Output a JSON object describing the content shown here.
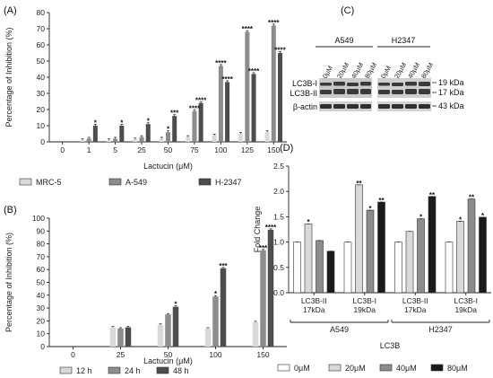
{
  "colors": {
    "light": "#d9d9d9",
    "mid": "#8c8c8c",
    "dark": "#4d4d4d",
    "black": "#1a1a1a",
    "white": "#ffffff"
  },
  "chart_data": [
    {
      "panel_label": "(A)",
      "type": "bar",
      "ylabel": "Percentage of Inhibition (%)",
      "xlabel": "Lactucin (μM)",
      "ylim": [
        0,
        80
      ],
      "yticks": [
        0,
        10,
        20,
        30,
        40,
        50,
        60,
        70,
        80
      ],
      "categories": [
        "0",
        "1",
        "5",
        "25",
        "50",
        "75",
        "100",
        "125",
        "150"
      ],
      "series": [
        {
          "name": "MRC-5",
          "color": "light",
          "values": [
            0,
            1,
            1,
            1.5,
            2,
            3,
            4,
            5,
            6
          ]
        },
        {
          "name": "A-549",
          "color": "mid",
          "values": [
            0,
            2,
            2,
            3,
            6,
            19,
            47,
            68,
            72
          ]
        },
        {
          "name": "H-2347",
          "color": "dark",
          "values": [
            0,
            10,
            10,
            11,
            16,
            24,
            37,
            42,
            55
          ]
        }
      ],
      "annotations": [
        {
          "category": 1,
          "series": 2,
          "text": "*"
        },
        {
          "category": 2,
          "series": 2,
          "text": "*"
        },
        {
          "category": 3,
          "series": 2,
          "text": "*"
        },
        {
          "category": 4,
          "series": 1,
          "text": "*"
        },
        {
          "category": 4,
          "series": 2,
          "text": "***"
        },
        {
          "category": 5,
          "series": 1,
          "text": "****"
        },
        {
          "category": 5,
          "series": 2,
          "text": "****"
        },
        {
          "category": 6,
          "series": 1,
          "text": "****"
        },
        {
          "category": 6,
          "series": 2,
          "text": "****"
        },
        {
          "category": 7,
          "series": 1,
          "text": "****"
        },
        {
          "category": 7,
          "series": 2,
          "text": "****"
        },
        {
          "category": 8,
          "series": 1,
          "text": "****"
        },
        {
          "category": 8,
          "series": 2,
          "text": "****"
        }
      ],
      "legend": "bottom"
    },
    {
      "panel_label": "(B)",
      "type": "bar",
      "ylabel": "Percentage of Inhibition (%)",
      "xlabel": "Lactucin (μM)",
      "ylim": [
        0,
        100
      ],
      "yticks": [
        0,
        10,
        20,
        30,
        40,
        50,
        60,
        70,
        80,
        90,
        100
      ],
      "categories": [
        "0",
        "25",
        "50",
        "100",
        "150"
      ],
      "series": [
        {
          "name": "12 h",
          "color": "light",
          "values": [
            0,
            15,
            17,
            14,
            19
          ]
        },
        {
          "name": "24 h",
          "color": "mid",
          "values": [
            0,
            14,
            25,
            39,
            75
          ]
        },
        {
          "name": "48 h",
          "color": "dark",
          "values": [
            0,
            15,
            31,
            61,
            91
          ]
        }
      ],
      "annotations": [
        {
          "category": 2,
          "series": 2,
          "text": "*"
        },
        {
          "category": 3,
          "series": 1,
          "text": "*"
        },
        {
          "category": 3,
          "series": 2,
          "text": "***"
        },
        {
          "category": 4,
          "series": 1,
          "text": "***"
        },
        {
          "category": 4,
          "series": 2,
          "text": "****"
        }
      ],
      "legend": "bottom"
    },
    {
      "panel_label": "(D)",
      "type": "bar",
      "ylabel": "Fold Change",
      "xlabel": "LC3B",
      "ylim": [
        0,
        2.5
      ],
      "yticks": [
        0.0,
        0.5,
        1.0,
        1.5,
        2.0,
        2.5
      ],
      "categories": [
        "LC3B-II\n17kDa",
        "LC3B-I\n19kDa",
        "LC3B-II\n17kDa",
        "LC3B-I\n19kDa"
      ],
      "groups": [
        {
          "label": "A549",
          "categories": [
            0,
            1
          ]
        },
        {
          "label": "H2347",
          "categories": [
            2,
            3
          ]
        }
      ],
      "series": [
        {
          "name": "0μM",
          "color": "white",
          "values": [
            1.0,
            1.0,
            1.0,
            1.0
          ]
        },
        {
          "name": "20μM",
          "color": "light",
          "values": [
            1.36,
            2.13,
            1.21,
            1.41
          ]
        },
        {
          "name": "40μM",
          "color": "mid",
          "values": [
            1.03,
            1.63,
            1.46,
            1.85
          ]
        },
        {
          "name": "80μM",
          "color": "black",
          "values": [
            0.82,
            1.79,
            1.9,
            1.49
          ]
        }
      ],
      "annotations": [
        {
          "category": 0,
          "series": 1,
          "text": "*"
        },
        {
          "category": 1,
          "series": 1,
          "text": "**"
        },
        {
          "category": 1,
          "series": 2,
          "text": "*"
        },
        {
          "category": 1,
          "series": 3,
          "text": "**"
        },
        {
          "category": 2,
          "series": 2,
          "text": "*"
        },
        {
          "category": 2,
          "series": 3,
          "text": "**"
        },
        {
          "category": 3,
          "series": 1,
          "text": "*"
        },
        {
          "category": 3,
          "series": 2,
          "text": "**"
        },
        {
          "category": 3,
          "series": 3,
          "text": "*"
        }
      ],
      "legend": "bottom"
    }
  ],
  "blot": {
    "panel_label": "(C)",
    "cell_lines": [
      "A549",
      "H2347"
    ],
    "lane_labels": [
      "0μM",
      "20μM",
      "40μM",
      "80μM"
    ],
    "row_labels": [
      "LC3B-I",
      "LC3B-II",
      "β-actin"
    ],
    "size_labels": [
      "19 kDa",
      "17 kDa",
      "43 kDa"
    ]
  }
}
